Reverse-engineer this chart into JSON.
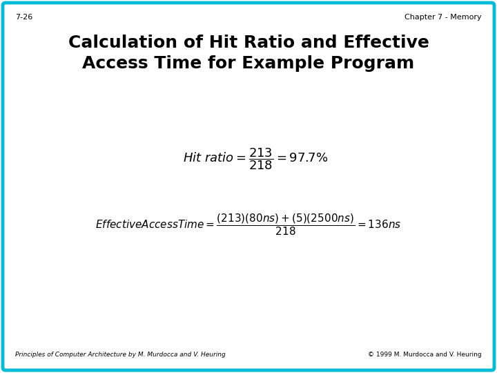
{
  "slide_number": "7-26",
  "chapter_label": "Chapter 7 - Memory",
  "title_line1": "Calculation of Hit Ratio and Effective",
  "title_line2": "Access Time for Example Program",
  "footer_left": "Principles of Computer Architecture by M. Murdocca and V. Heuring",
  "footer_right": "© 1999 M. Murdocca and V. Heuring",
  "bg_color": "#ffffff",
  "border_color": "#00bcd4",
  "title_color": "#000000",
  "slide_num_color": "#000000",
  "chapter_color": "#000000",
  "footer_color": "#000000",
  "title_fontsize": 18,
  "header_fontsize": 8,
  "formula_fontsize": 13,
  "eat_fontsize": 11,
  "footer_fontsize": 6.5
}
